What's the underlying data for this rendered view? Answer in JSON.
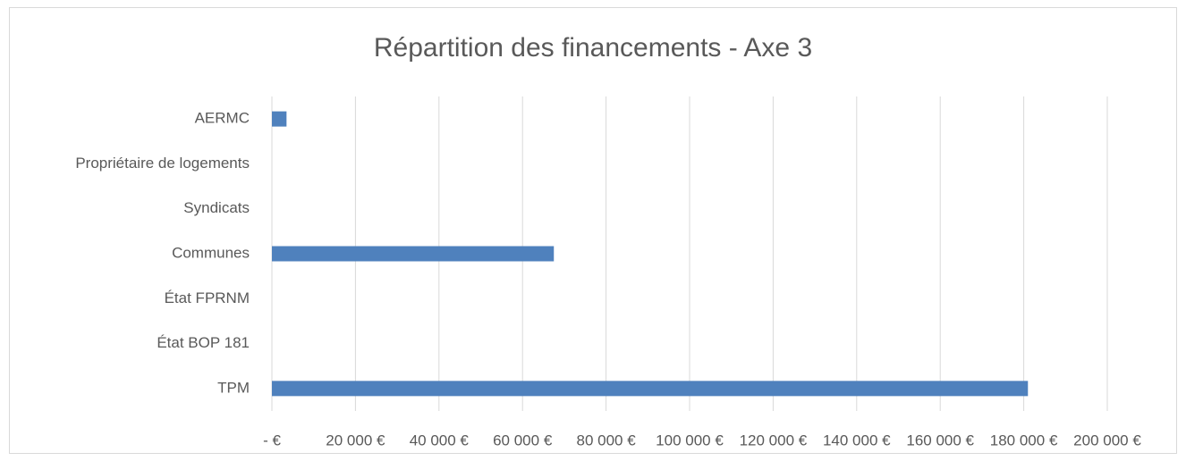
{
  "chart_data": {
    "type": "barh",
    "title": "Répartition des financements - Axe 3",
    "categories": [
      "AERMC",
      "Propriétaire de logements",
      "Syndicats",
      "Communes",
      "État FPRNM",
      "État BOP 181",
      "TPM"
    ],
    "values": [
      3500,
      0,
      0,
      67500,
      0,
      0,
      181000
    ],
    "color": "#4f81bd",
    "xlim": [
      0,
      200000
    ],
    "xticks": [
      {
        "value": 0,
        "label": "-   €"
      },
      {
        "value": 20000,
        "label": "20 000 €"
      },
      {
        "value": 40000,
        "label": "40 000 €"
      },
      {
        "value": 60000,
        "label": "60 000 €"
      },
      {
        "value": 80000,
        "label": "80 000 €"
      },
      {
        "value": 100000,
        "label": "100 000 €"
      },
      {
        "value": 120000,
        "label": "120 000 €"
      },
      {
        "value": 140000,
        "label": "140 000 €"
      },
      {
        "value": 160000,
        "label": "160 000 €"
      },
      {
        "value": 180000,
        "label": "180 000 €"
      },
      {
        "value": 200000,
        "label": "200 000 €"
      }
    ],
    "grid": true
  }
}
